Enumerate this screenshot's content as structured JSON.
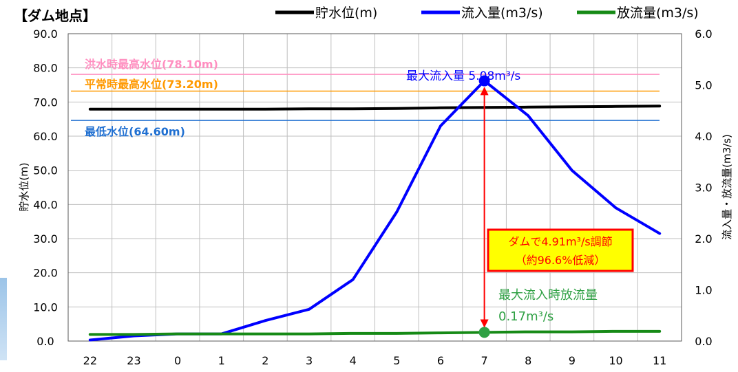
{
  "chart_data": {
    "type": "line",
    "title": "【ダム地点】",
    "ylabel_left": "貯水位(m)",
    "ylabel_right": "流入量・放流量(m3/s)",
    "xlabel": "",
    "categories": [
      "22",
      "23",
      "0",
      "1",
      "2",
      "3",
      "4",
      "5",
      "6",
      "7",
      "8",
      "9",
      "10",
      "11"
    ],
    "ylim_left": [
      0,
      90
    ],
    "ylim_right": [
      0,
      6
    ],
    "yticks_left": [
      "0.0",
      "10.0",
      "20.0",
      "30.0",
      "40.0",
      "50.0",
      "60.0",
      "70.0",
      "80.0",
      "90.0"
    ],
    "yticks_right": [
      "0.0",
      "1.0",
      "2.0",
      "3.0",
      "4.0",
      "5.0",
      "6.0"
    ],
    "grid": true,
    "legend_position": "top-right",
    "series": [
      {
        "name": "貯水位(m)",
        "axis": "left",
        "color": "#000000",
        "values": [
          67.9,
          67.9,
          67.9,
          67.9,
          67.9,
          68.0,
          68.0,
          68.1,
          68.3,
          68.4,
          68.5,
          68.6,
          68.7,
          68.8
        ]
      },
      {
        "name": "流入量(m3/s)",
        "axis": "right",
        "color": "#0000ff",
        "values": [
          0.02,
          0.1,
          0.14,
          0.14,
          0.4,
          0.62,
          1.2,
          2.52,
          4.2,
          5.08,
          4.4,
          3.33,
          2.6,
          2.1
        ]
      },
      {
        "name": "放流量(m3/s)",
        "axis": "right",
        "color": "#168a16",
        "values": [
          0.13,
          0.13,
          0.14,
          0.14,
          0.14,
          0.14,
          0.15,
          0.15,
          0.16,
          0.17,
          0.18,
          0.18,
          0.19,
          0.19
        ]
      }
    ],
    "reference_lines": [
      {
        "label": "洪水時最高水位(78.10m)",
        "value": 78.1,
        "color": "#ff8fc0"
      },
      {
        "label": "平常時最高水位(73.20m)",
        "value": 73.2,
        "color": "#ff9900"
      },
      {
        "label": "最低水位(64.60m)",
        "value": 64.6,
        "color": "#1f6fd1"
      }
    ],
    "annotations": {
      "max_inflow": {
        "text": "最大流入量 5.08m³/s",
        "category": "7",
        "value": 5.08
      },
      "regulation": {
        "line1": "ダムで4.91m³/s調節",
        "line2": "（約96.6%低減）"
      },
      "max_inflow_outflow": {
        "line1": "最大流入時放流量",
        "line2": "0.17m³/s",
        "category": "7",
        "value": 0.17
      }
    }
  }
}
